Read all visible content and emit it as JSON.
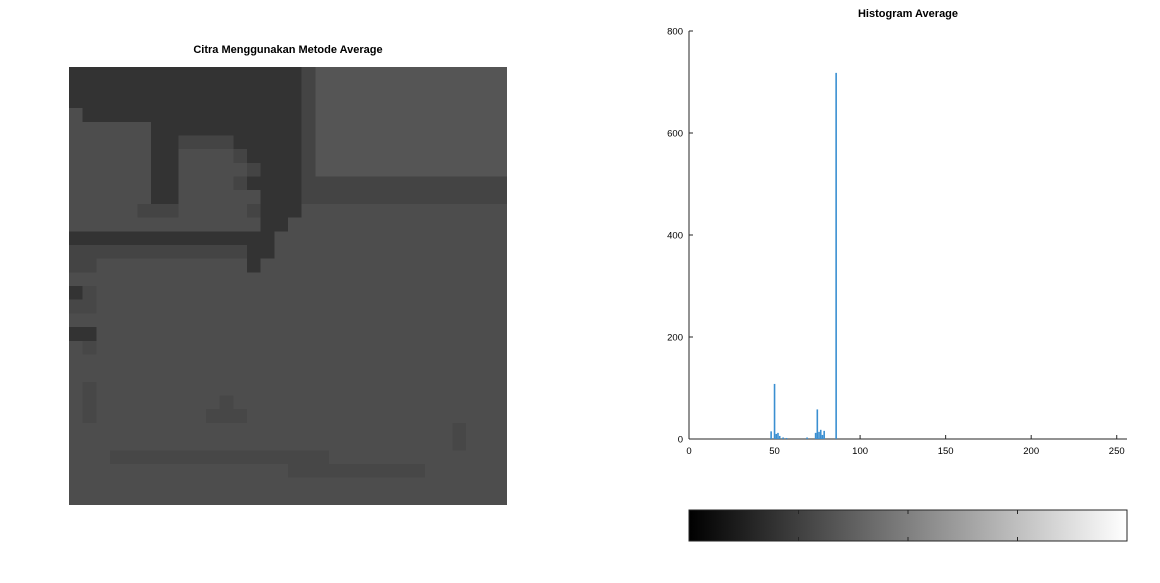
{
  "left_panel": {
    "title": "Citra Menggunakan Metode Average",
    "image_description": "grayscale pixelated image (32x32 blocks)",
    "palette": {
      "A": "#4d4d4d",
      "B": "#555555",
      "C": "#333333",
      "D": "#444444",
      "E": "#2b2b2b",
      "F": "#3c3c3c",
      "G": "#505050",
      "H": "#474747"
    },
    "grid": [
      "CCCCCCCCCCCCCCCCCDBBBBBBBBBBBBBB",
      "CCCCCCCCCCCCCCCCCDBBBBBBBBBBBBBB",
      "CCCCCCCCCCCCCCCCCDBBBBBBBBBBBBBB",
      "ACCCCCCCCCCCCCCCCDBBBBBBBBBBBBBB",
      "AAAAAACCCCCCCCCCCDBBBBBBBBBBBBBB",
      "AAAAAACCDDDDCCCCCDBBBBBBBBBBBBBB",
      "AAAAAACCAAAADCCCCDBBBBBBBBBBBBBB",
      "AAAAAACCAAAAADCCCDBBBBBBBBBBBBBB",
      "AAAAAACCAAAADCCCCDDDDDDDDDDDDDDD",
      "AAAAAACCAAAAAACCCDDDDDDDDDDDDDDD",
      "AAAAADDDAAAAADCCCAAAAAAAAAAAAAAA",
      "AAAAAAAAAAAAAACCAAAAAAAAAAAAAAAA",
      "CCCCCCCCCCCCCCCAAAAAAAAAAAAAAAAA",
      "DDDDDDDDDDDDDCCAAAAAAAAAAAAAAAAA",
      "DDAAAAAAAAAAACAAAAAAAAAAAAAAAAAA",
      "AAAAAAAAAAAAAAAAAAAAAAAAAAAAAAAA",
      "CHAAAAAAAAAAAAAAAAAAAAAAAAAAAAAA",
      "HHAAAAAAAAAAAAAAAAAAAAAAAAAAAAAA",
      "AAAAAAAAAAAAAAAAAAAAAAAAAAAAAAAA",
      "CCAAAAAAAAAAAAAAAAAAAAAAAAAAAAAA",
      "AHAAAAAAAAAAAAAAAAAAAAAAAAAAAAAA",
      "AAAAAAAAAAAAAAAAAAAAAAAAAAAAAAAA",
      "AAAAAAAAAAAAAAAAAAAAAAAAAAAAAAAA",
      "AHAAAAAAAAAAAAAAAAAAAAAAAAAAAAAA",
      "AHAAAAAAAAAHAAAAAAAAAAAAAAAAAAAA",
      "AHAAAAAAAAHHHAAAAAAAAAAAAAAAAAAA",
      "AAAAAAAAAAAAAAAAAAAAAAAAAAAAHAAA",
      "AAAAAAAAAAAAAAAAAAAAAAAAAAAAHAAA",
      "AAAHHHHHHHHHHHHHHHHAAAAAAAAAAAAA",
      "AAAAAAAAAAAAAAAAHHHHHHHHHHAAAAAA",
      "AAAAAAAAAAAAAAAAAAAAAAAAAAAAAAAA",
      "AAAAAAAAAAAAAAAAAAAAAAAAAAAAAAAA"
    ]
  },
  "chart_data": {
    "type": "bar",
    "title": "Histogram Average",
    "xlabel": "",
    "ylabel": "",
    "xlim": [
      0,
      256
    ],
    "ylim": [
      0,
      800
    ],
    "x_ticks": [
      0,
      50,
      100,
      150,
      200,
      250
    ],
    "y_ticks": [
      0,
      200,
      400,
      600,
      800
    ],
    "bar_color": "#3a8fd1",
    "x": [
      48,
      50,
      51,
      52,
      53,
      55,
      57,
      69,
      74,
      75,
      76,
      77,
      78,
      79,
      86
    ],
    "values": [
      15,
      108,
      10,
      12,
      6,
      3,
      2,
      3,
      12,
      58,
      14,
      18,
      8,
      16,
      718
    ],
    "colorbar": {
      "from": "#000000",
      "to": "#ffffff",
      "range": [
        0,
        255
      ]
    }
  }
}
